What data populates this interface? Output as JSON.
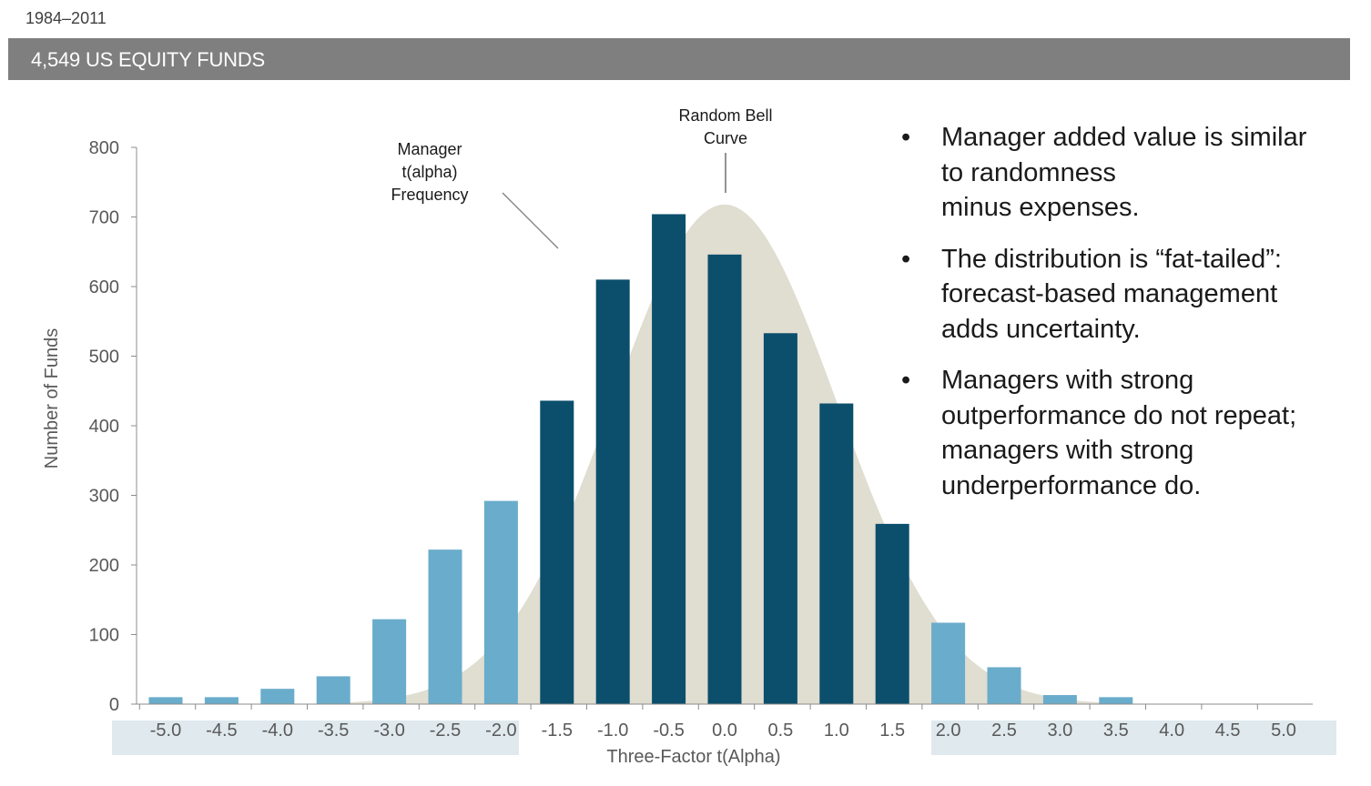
{
  "header": {
    "period": "1984–2011",
    "banner_title": "4,549 US EQUITY FUNDS"
  },
  "colors": {
    "banner": "#7f7f7f",
    "bell_curve": "#e0ddd1",
    "bar_dark": "#0b4f6c",
    "bar_light": "#6aaccb",
    "tail_band": "#dfe9ee"
  },
  "annotations": {
    "manager": [
      "Manager",
      "t(alpha)",
      "Frequency"
    ],
    "bell": [
      "Random Bell",
      "Curve"
    ]
  },
  "bullets": [
    {
      "symbol": "•",
      "lines": [
        "Manager added value is similar",
        "to randomness",
        "minus expenses."
      ]
    },
    {
      "symbol": "•",
      "lines": [
        "The distribution is “fat-tailed”:",
        "forecast-based management",
        "adds uncertainty."
      ]
    },
    {
      "symbol": "•",
      "lines": [
        "Managers with strong",
        "outperformance do not repeat;",
        "managers with strong",
        "underperformance do."
      ]
    }
  ],
  "chart_data": {
    "type": "bar",
    "xlabel": "Three-Factor t(Alpha)",
    "ylabel": "Number of Funds",
    "ylim": [
      0,
      800
    ],
    "yticks": [
      "0",
      "100",
      "200",
      "300",
      "400",
      "500",
      "600",
      "700",
      "800"
    ],
    "categories": [
      "-5.0",
      "-4.5",
      "-4.0",
      "-3.5",
      "-3.0",
      "-2.5",
      "-2.0",
      "-1.5",
      "-1.0",
      "-0.5",
      "0.0",
      "0.5",
      "1.0",
      "1.5",
      "2.0",
      "2.5",
      "3.0",
      "3.5",
      "4.0",
      "4.5",
      "5.0"
    ],
    "values": [
      10,
      10,
      22,
      40,
      122,
      222,
      292,
      436,
      610,
      704,
      646,
      533,
      432,
      259,
      117,
      53,
      13,
      10,
      0,
      0,
      0
    ],
    "bar_groups": [
      "tail",
      "tail",
      "tail",
      "tail",
      "tail",
      "tail",
      "tail",
      "core",
      "core",
      "core",
      "core",
      "core",
      "core",
      "core",
      "tail",
      "tail",
      "tail",
      "tail",
      "tail",
      "tail",
      "tail"
    ],
    "bell_curve": {
      "peak": 718,
      "mean": 0.0,
      "sd": 1.0
    },
    "grid": false
  }
}
